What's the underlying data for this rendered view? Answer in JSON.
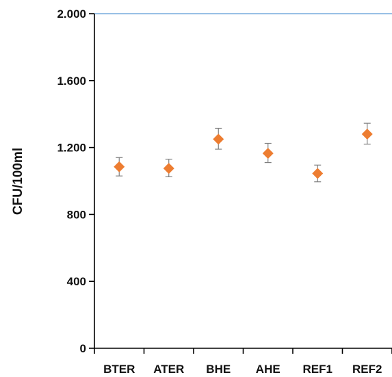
{
  "chart_data": {
    "type": "scatter",
    "title": "",
    "xlabel": "",
    "ylabel": "CFU/100ml",
    "categories": [
      "BTER",
      "ATER",
      "BHE",
      "AHE",
      "REF1",
      "REF2"
    ],
    "series": [
      {
        "values": [
          1085,
          1075,
          1250,
          1165,
          1045,
          1280
        ],
        "error_low": [
          1030,
          1025,
          1190,
          1110,
          995,
          1220
        ],
        "error_high": [
          1140,
          1130,
          1315,
          1225,
          1095,
          1345
        ]
      }
    ],
    "ylim": [
      0,
      2000
    ],
    "yticks": [
      0,
      400,
      800,
      1200,
      1600,
      2000
    ],
    "ytick_labels": [
      "0",
      "400",
      "800",
      "1.200",
      "1.600",
      "2.000"
    ],
    "grid": false,
    "marker": "diamond",
    "marker_color": "#ED7D31",
    "error_bar_color": "#7F7F7F",
    "top_line_color": "#5B9BD5",
    "axis_color": "#000000"
  }
}
